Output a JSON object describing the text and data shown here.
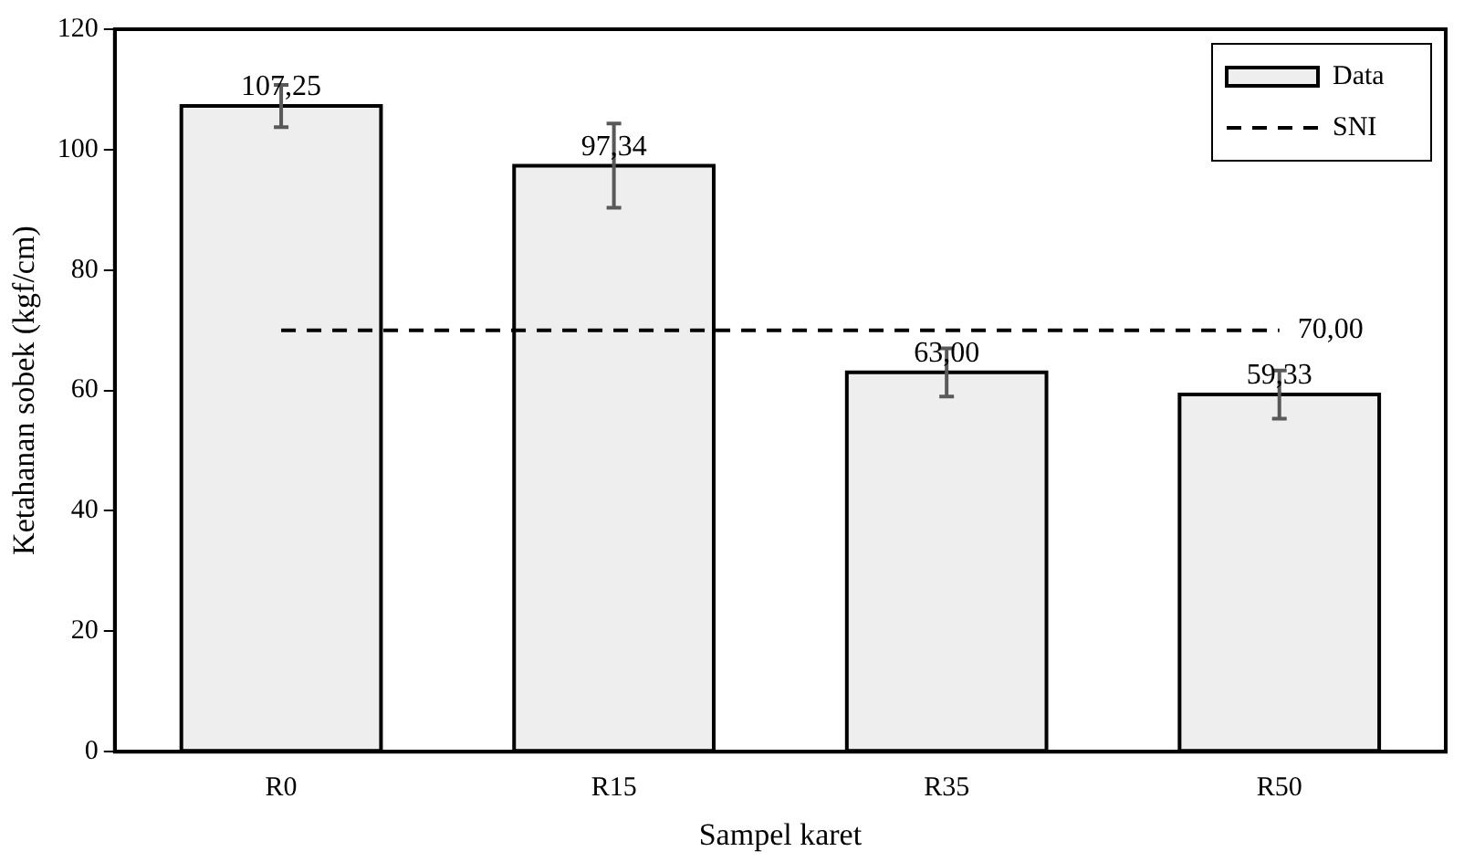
{
  "chart_data": {
    "type": "bar",
    "xlabel": "Sampel karet",
    "ylabel": "Ketahanan sobek (kgf/cm)",
    "categories": [
      "R0",
      "R15",
      "R35",
      "R50"
    ],
    "series": [
      {
        "name": "Data",
        "color": "#eeeeee",
        "values": [
          107.25,
          97.34,
          63.0,
          59.33
        ],
        "errors": [
          3.5,
          7,
          4,
          4
        ],
        "value_labels": [
          "107,25",
          "97,34",
          "63,00",
          "59,33"
        ]
      },
      {
        "name": "SNI",
        "type": "line",
        "color": "#000000",
        "line_style": "dashed",
        "marker": "none",
        "values": [
          70,
          70,
          70,
          70
        ],
        "value_labels": [
          null,
          null,
          null,
          "70,00"
        ]
      }
    ],
    "ylim": [
      0,
      120
    ],
    "yticks": [
      0,
      20,
      40,
      60,
      80,
      100,
      120
    ],
    "grid": false,
    "legend": "top right"
  }
}
